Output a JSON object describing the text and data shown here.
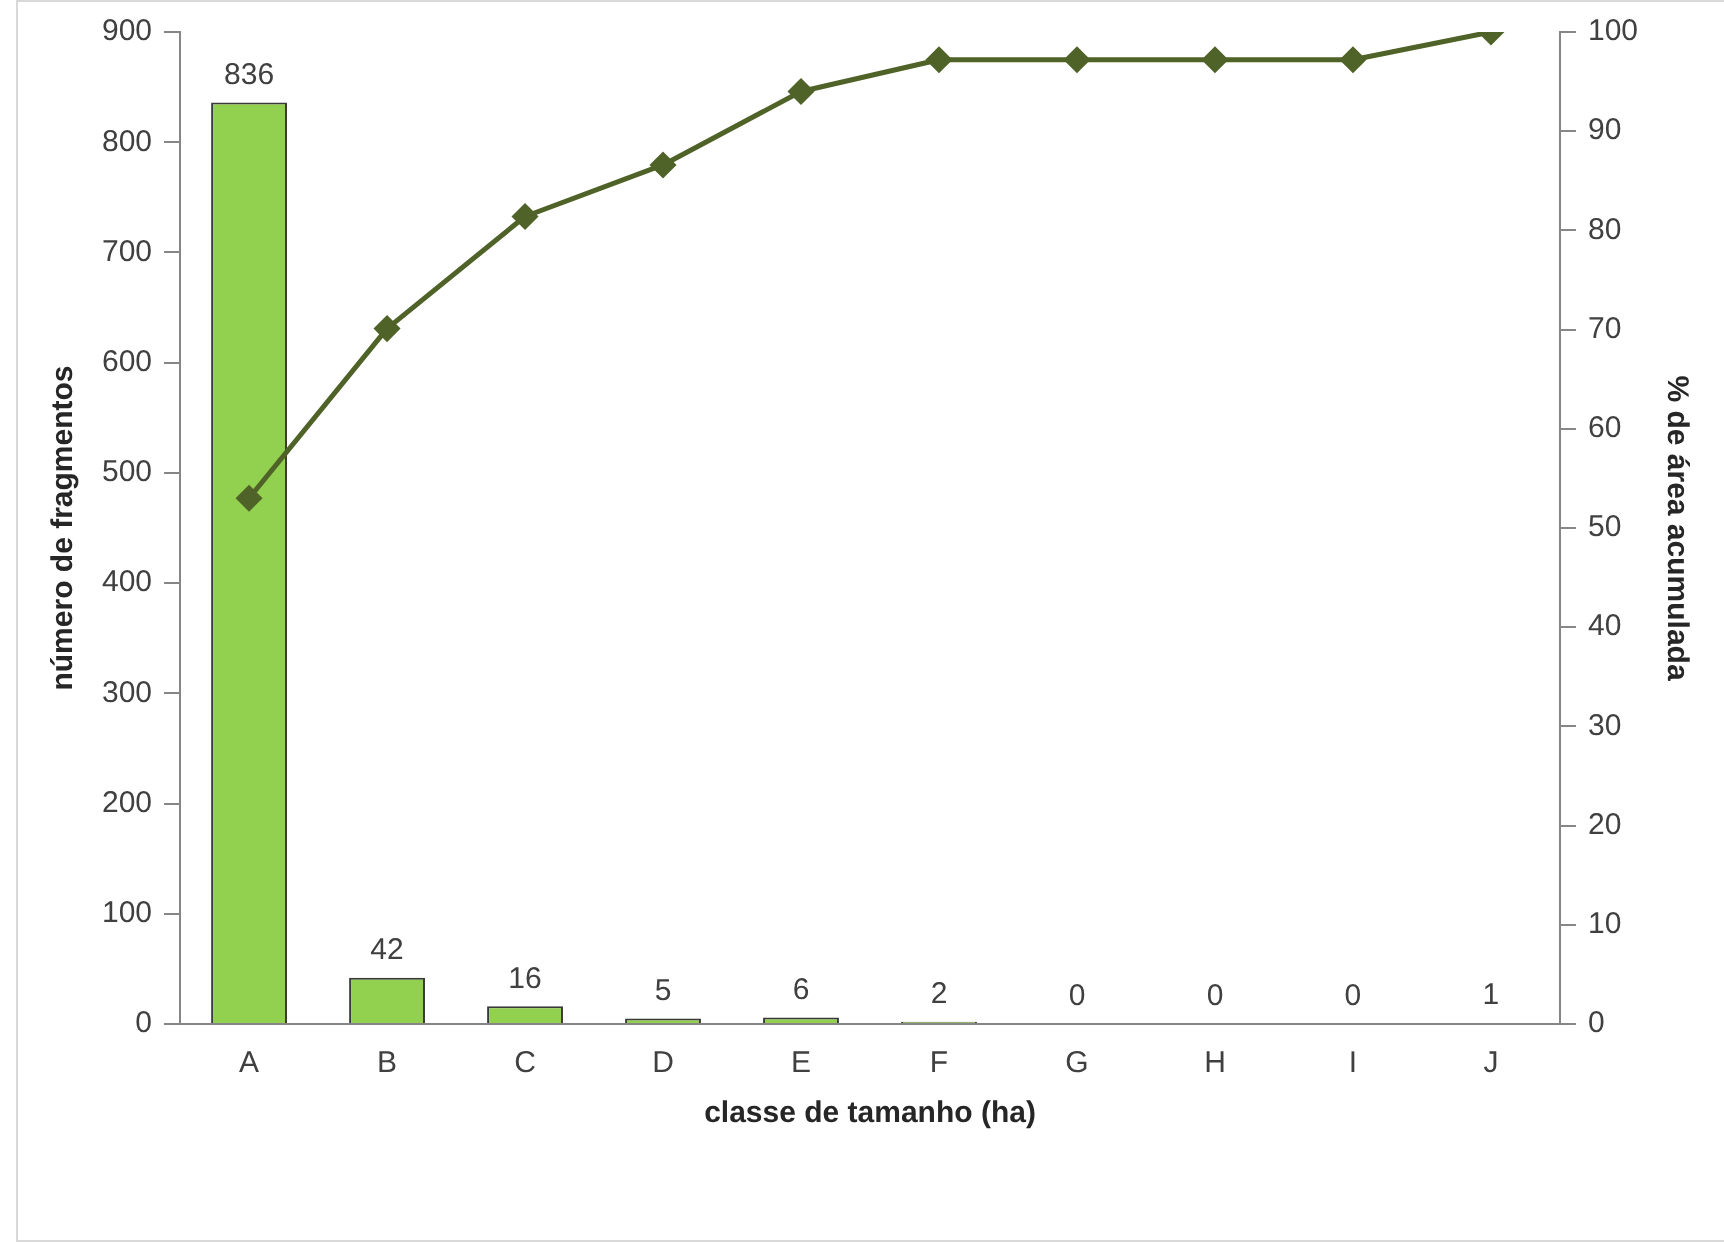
{
  "chart_data": {
    "type": "bar",
    "xlabel": "classe de tamanho (ha)",
    "ylabel": "número de fragmentos",
    "y2label": "% de área acumulada",
    "categories": [
      "A",
      "B",
      "C",
      "D",
      "E",
      "F",
      "G",
      "H",
      "I",
      "J"
    ],
    "series": [
      {
        "color": "#92d050",
        "values": [
          836,
          42,
          16,
          5,
          6,
          2,
          0,
          0,
          0,
          1
        ],
        "value_labels": [
          "836",
          "42",
          "16",
          "5",
          "6",
          "2",
          "0",
          "0",
          "0",
          "1"
        ]
      },
      {
        "type": "line",
        "axis": "y2",
        "color": "#4f6228",
        "marker": "diamond",
        "values": [
          53.0,
          70.1,
          81.4,
          86.6,
          94.0,
          97.2,
          97.2,
          97.2,
          97.2,
          100
        ]
      }
    ],
    "ylim": [
      0,
      900
    ],
    "yticks": [
      0,
      100,
      200,
      300,
      400,
      500,
      600,
      700,
      800,
      900
    ],
    "y2lim": [
      0,
      100
    ],
    "y2ticks": [
      0,
      10,
      20,
      30,
      40,
      50,
      60,
      70,
      80,
      90,
      100
    ],
    "grid": false,
    "legend": false
  }
}
